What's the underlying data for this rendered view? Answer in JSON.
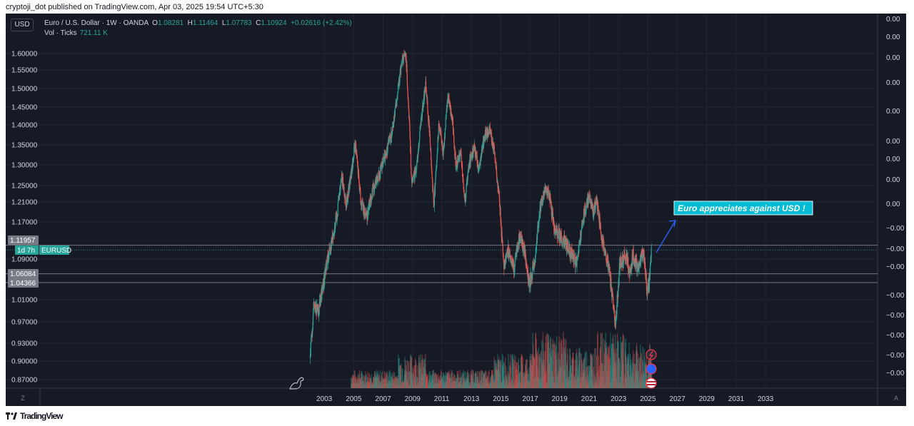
{
  "header": {
    "published": "cryptoji_dot published on TradingView.com, Apr 03, 2025 19:54 UTC+5:30"
  },
  "toolbar": {
    "currency": "USD"
  },
  "legend": {
    "symbol": "Euro / U.S. Dollar · 1W · OANDA",
    "open_label": "O",
    "open": "1.08281",
    "high_label": "H",
    "high": "1.11464",
    "low_label": "L",
    "low": "1.07783",
    "close_label": "C",
    "close": "1.10924",
    "change": "+0.02616 (+2.42%)",
    "vol_label": "Vol · Ticks",
    "vol_value": "721.11 K"
  },
  "annotation": {
    "text": "Euro appreciates against USD !"
  },
  "footer": {
    "brand": "TradingView",
    "zoom_btn": "Z",
    "auto_btn": "A"
  },
  "price_tags": [
    {
      "label": "1.11957",
      "kind": "grey"
    },
    {
      "label": "1d 7h",
      "kind": "green"
    },
    {
      "label": "EURUSD",
      "kind": "green"
    },
    {
      "label": "1.06084",
      "kind": "grey"
    },
    {
      "label": "1.04366",
      "kind": "grey"
    }
  ],
  "chart_data": {
    "type": "candlestick",
    "symbol": "EURUSD",
    "interval": "1W",
    "x_ticks": [
      "2003",
      "2005",
      "2007",
      "2009",
      "2011",
      "2013",
      "2015",
      "2017",
      "2019",
      "2021",
      "2023",
      "2025",
      "2027",
      "2029",
      "2031",
      "2033"
    ],
    "y_ticks": [
      0.87,
      0.9,
      0.93,
      0.97,
      1.01,
      1.09,
      1.17,
      1.21,
      1.25,
      1.3,
      1.35,
      1.4,
      1.45,
      1.5,
      1.55,
      1.6
    ],
    "y_tick_labels": [
      "0.87000",
      "0.90000",
      "0.93000",
      "0.97000",
      "1.01000",
      "1.09000",
      "1.17000",
      "1.21000",
      "1.25000",
      "1.30000",
      "1.35000",
      "1.40000",
      "1.45000",
      "1.50000",
      "1.55000",
      "1.60000"
    ],
    "right_axis_labels": [
      "0.00",
      "0.00",
      "0.00",
      "0.00",
      "0.00",
      "0.00",
      "0.00",
      "0.00",
      "0.00",
      "−0.00",
      "−0.00",
      "−0.00",
      "−0.00",
      "−0.00",
      "−0.00",
      "−0.00",
      "−0.00"
    ],
    "price_path": [
      {
        "x": 2002.05,
        "y": 0.905
      },
      {
        "x": 2002.3,
        "y": 1.0
      },
      {
        "x": 2002.6,
        "y": 0.985
      },
      {
        "x": 2003.0,
        "y": 1.05
      },
      {
        "x": 2003.3,
        "y": 1.1
      },
      {
        "x": 2003.6,
        "y": 1.14
      },
      {
        "x": 2003.9,
        "y": 1.19
      },
      {
        "x": 2004.2,
        "y": 1.27
      },
      {
        "x": 2004.5,
        "y": 1.205
      },
      {
        "x": 2004.9,
        "y": 1.29
      },
      {
        "x": 2005.1,
        "y": 1.355
      },
      {
        "x": 2005.5,
        "y": 1.21
      },
      {
        "x": 2005.9,
        "y": 1.18
      },
      {
        "x": 2006.3,
        "y": 1.24
      },
      {
        "x": 2006.8,
        "y": 1.28
      },
      {
        "x": 2007.2,
        "y": 1.33
      },
      {
        "x": 2007.6,
        "y": 1.38
      },
      {
        "x": 2007.9,
        "y": 1.46
      },
      {
        "x": 2008.3,
        "y": 1.58
      },
      {
        "x": 2008.55,
        "y": 1.6
      },
      {
        "x": 2008.8,
        "y": 1.4
      },
      {
        "x": 2008.95,
        "y": 1.25
      },
      {
        "x": 2009.3,
        "y": 1.3
      },
      {
        "x": 2009.6,
        "y": 1.42
      },
      {
        "x": 2009.9,
        "y": 1.51
      },
      {
        "x": 2010.2,
        "y": 1.36
      },
      {
        "x": 2010.45,
        "y": 1.2
      },
      {
        "x": 2010.8,
        "y": 1.4
      },
      {
        "x": 2011.1,
        "y": 1.33
      },
      {
        "x": 2011.4,
        "y": 1.48
      },
      {
        "x": 2011.7,
        "y": 1.42
      },
      {
        "x": 2011.95,
        "y": 1.3
      },
      {
        "x": 2012.3,
        "y": 1.33
      },
      {
        "x": 2012.55,
        "y": 1.21
      },
      {
        "x": 2012.9,
        "y": 1.31
      },
      {
        "x": 2013.2,
        "y": 1.34
      },
      {
        "x": 2013.5,
        "y": 1.29
      },
      {
        "x": 2013.9,
        "y": 1.37
      },
      {
        "x": 2014.3,
        "y": 1.39
      },
      {
        "x": 2014.6,
        "y": 1.32
      },
      {
        "x": 2014.9,
        "y": 1.22
      },
      {
        "x": 2015.2,
        "y": 1.08
      },
      {
        "x": 2015.5,
        "y": 1.11
      },
      {
        "x": 2015.9,
        "y": 1.07
      },
      {
        "x": 2016.3,
        "y": 1.14
      },
      {
        "x": 2016.6,
        "y": 1.11
      },
      {
        "x": 2016.95,
        "y": 1.04
      },
      {
        "x": 2017.3,
        "y": 1.08
      },
      {
        "x": 2017.6,
        "y": 1.18
      },
      {
        "x": 2018.0,
        "y": 1.24
      },
      {
        "x": 2018.3,
        "y": 1.23
      },
      {
        "x": 2018.6,
        "y": 1.16
      },
      {
        "x": 2019.0,
        "y": 1.14
      },
      {
        "x": 2019.5,
        "y": 1.12
      },
      {
        "x": 2019.8,
        "y": 1.1
      },
      {
        "x": 2020.2,
        "y": 1.08
      },
      {
        "x": 2020.6,
        "y": 1.18
      },
      {
        "x": 2021.0,
        "y": 1.225
      },
      {
        "x": 2021.3,
        "y": 1.19
      },
      {
        "x": 2021.5,
        "y": 1.22
      },
      {
        "x": 2021.9,
        "y": 1.13
      },
      {
        "x": 2022.3,
        "y": 1.08
      },
      {
        "x": 2022.7,
        "y": 0.99
      },
      {
        "x": 2022.8,
        "y": 0.96
      },
      {
        "x": 2023.1,
        "y": 1.08
      },
      {
        "x": 2023.5,
        "y": 1.1
      },
      {
        "x": 2023.8,
        "y": 1.06
      },
      {
        "x": 2024.0,
        "y": 1.1
      },
      {
        "x": 2024.3,
        "y": 1.07
      },
      {
        "x": 2024.7,
        "y": 1.11
      },
      {
        "x": 2024.95,
        "y": 1.03
      },
      {
        "x": 2025.1,
        "y": 1.04
      },
      {
        "x": 2025.25,
        "y": 1.109
      }
    ],
    "grid": true
  }
}
